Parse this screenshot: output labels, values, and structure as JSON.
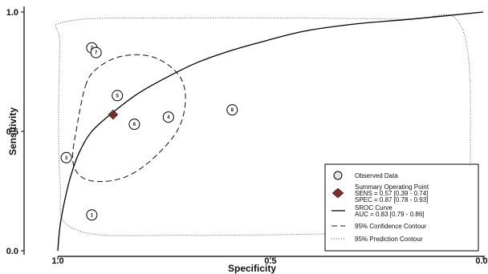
{
  "chart_data": {
    "type": "scatter",
    "xlabel": "Specificity",
    "ylabel": "Sensitivity",
    "x_reversed": true,
    "xlim": [
      1.0,
      0.0
    ],
    "ylim": [
      0.0,
      1.0
    ],
    "x_ticks": [
      "1.0",
      "0.5",
      "0.0"
    ],
    "y_ticks": [
      "0.0",
      "0.5",
      "1.0"
    ],
    "grid": false,
    "legend_position": "bottom-right",
    "observed": [
      {
        "label": "1",
        "specificity": 0.92,
        "sensitivity": 0.15
      },
      {
        "label": "2",
        "specificity": 0.92,
        "sensitivity": 0.85
      },
      {
        "label": "3",
        "specificity": 0.98,
        "sensitivity": 0.39
      },
      {
        "label": "4",
        "specificity": 0.74,
        "sensitivity": 0.56
      },
      {
        "label": "5",
        "specificity": 0.86,
        "sensitivity": 0.65
      },
      {
        "label": "6",
        "specificity": 0.82,
        "sensitivity": 0.53
      },
      {
        "label": "7",
        "specificity": 0.91,
        "sensitivity": 0.83
      },
      {
        "label": "8",
        "specificity": 0.59,
        "sensitivity": 0.59
      }
    ],
    "summary_point": {
      "specificity": 0.87,
      "sensitivity": 0.57
    },
    "sroc_curve": [
      [
        1.0,
        0.0
      ],
      [
        0.995,
        0.1
      ],
      [
        0.985,
        0.2
      ],
      [
        0.97,
        0.31
      ],
      [
        0.95,
        0.41
      ],
      [
        0.92,
        0.5
      ],
      [
        0.87,
        0.58
      ],
      [
        0.81,
        0.66
      ],
      [
        0.74,
        0.73
      ],
      [
        0.67,
        0.79
      ],
      [
        0.59,
        0.84
      ],
      [
        0.51,
        0.88
      ],
      [
        0.42,
        0.92
      ],
      [
        0.3,
        0.95
      ],
      [
        0.17,
        0.97
      ],
      [
        0.0,
        1.0
      ]
    ],
    "confidence_contour": [
      [
        0.935,
        0.69
      ],
      [
        0.91,
        0.76
      ],
      [
        0.86,
        0.81
      ],
      [
        0.8,
        0.82
      ],
      [
        0.75,
        0.79
      ],
      [
        0.71,
        0.72
      ],
      [
        0.7,
        0.62
      ],
      [
        0.72,
        0.5
      ],
      [
        0.78,
        0.38
      ],
      [
        0.84,
        0.31
      ],
      [
        0.9,
        0.29
      ],
      [
        0.945,
        0.31
      ],
      [
        0.965,
        0.38
      ],
      [
        0.955,
        0.52
      ],
      [
        0.935,
        0.69
      ]
    ],
    "prediction_contour": [
      [
        0.98,
        0.96
      ],
      [
        0.7,
        0.975
      ],
      [
        0.2,
        0.97
      ],
      [
        0.055,
        0.95
      ],
      [
        0.03,
        0.5
      ],
      [
        0.055,
        0.12
      ],
      [
        0.2,
        0.08
      ],
      [
        0.7,
        0.065
      ],
      [
        0.96,
        0.09
      ],
      [
        0.995,
        0.3
      ],
      [
        0.995,
        0.85
      ],
      [
        0.98,
        0.96
      ]
    ]
  },
  "legend": {
    "observed_label": "Observed Data",
    "summary_label": "Summary Operating Point",
    "summary_sens": "SENS = 0.57 [0.39 - 0.74]",
    "summary_spec": "SPEC = 0.87 [0.78 - 0.93]",
    "sroc_label": "SROC Curve",
    "sroc_auc": "AUC = 0.83 [0.79 - 0.86]",
    "confidence_label": "95% Confidence Contour",
    "prediction_label": "95% Prediction Contour"
  },
  "colors": {
    "summary": "#7a2e2e",
    "curve": "#000000",
    "contour": "#222222"
  }
}
